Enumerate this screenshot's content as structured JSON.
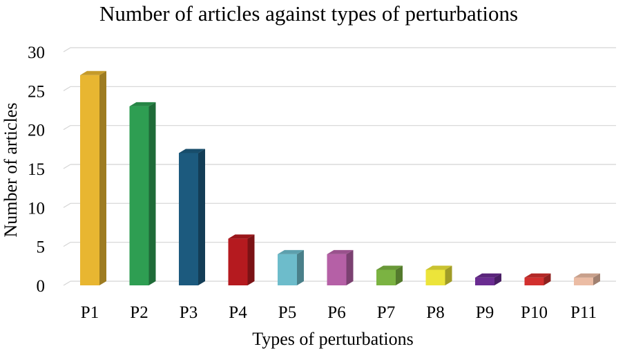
{
  "chart_data": {
    "type": "bar",
    "title": "Number of articles against types of perturbations",
    "xlabel": "Types of perturbations",
    "ylabel": "Number of articles",
    "categories": [
      "P1",
      "P2",
      "P3",
      "P4",
      "P5",
      "P6",
      "P7",
      "P8",
      "P9",
      "P10",
      "P11"
    ],
    "values": [
      27,
      23,
      17,
      6,
      4,
      4,
      2,
      2,
      1,
      1,
      1
    ],
    "colors": [
      "#E8B631",
      "#2E9E52",
      "#1C5A7E",
      "#B51A1F",
      "#6DBCCB",
      "#B560A6",
      "#7BB342",
      "#ECE43A",
      "#6A2C91",
      "#D2302E",
      "#EBBCA4"
    ],
    "ylim": [
      0,
      30
    ],
    "yticks": [
      0,
      5,
      10,
      15,
      20,
      25,
      30
    ],
    "grid": true,
    "style": "3d-column"
  }
}
